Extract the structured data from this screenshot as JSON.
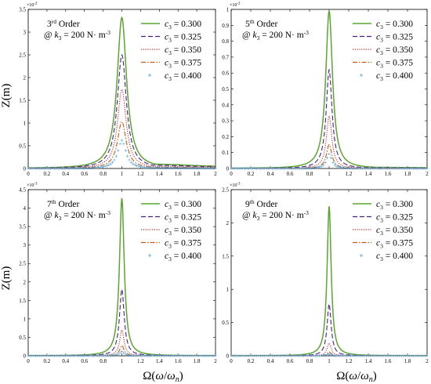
{
  "figure": {
    "ylabel": "Z(m)",
    "xlabel_parts": {
      "omega_cap": "Ω",
      "open": "(",
      "omega": "ω",
      "slash": "/",
      "omega2": "ω",
      "sub": "n",
      "close": ")"
    }
  },
  "legend": [
    {
      "label_var": "c",
      "label_sub": "3",
      "label_value": " = 0.300",
      "color": "#5aa630",
      "style": "solid"
    },
    {
      "label_var": "c",
      "label_sub": "3",
      "label_value": " = 0.325",
      "color": "#4b1e8a",
      "style": "dashed"
    },
    {
      "label_var": "c",
      "label_sub": "3",
      "label_value": " = 0.350",
      "color": "#c0302a",
      "style": "dotted"
    },
    {
      "label_var": "c",
      "label_sub": "3",
      "label_value": " = 0.375",
      "color": "#c85a14",
      "style": "dashdot"
    },
    {
      "label_var": "c",
      "label_sub": "3",
      "label_value": " = 0.400",
      "color": "#4fa3dc",
      "style": "plus"
    }
  ],
  "chart_data": [
    {
      "type": "line",
      "title_num": "3",
      "title_sup": "rd",
      "title_rest": " Order",
      "subtitle_pre": "@ ",
      "subtitle_var": "k",
      "subtitle_sub": "3",
      "subtitle_rest": " = 200 N· m",
      "subtitle_sup": "-3",
      "exponent_label": "×10",
      "exponent_power": "-2",
      "xlim": [
        0,
        2
      ],
      "ylim": [
        0,
        3.5
      ],
      "xticks": [
        "0",
        "0.2",
        "0.4",
        "0.6",
        "0.8",
        "1",
        "1.2",
        "1.4",
        "1.6",
        "1.8",
        "2"
      ],
      "yticks": [
        "0",
        "0.5",
        "1",
        "1.5",
        "2",
        "2.5",
        "3",
        "3.5"
      ],
      "peak_x": 1.0,
      "series": [
        {
          "peak": 3.32,
          "width": 0.11
        },
        {
          "peak": 2.5,
          "width": 0.105
        },
        {
          "peak": 1.74,
          "width": 0.1
        },
        {
          "peak": 1.03,
          "width": 0.1
        },
        {
          "peak": 0.62,
          "width": 0.095
        }
      ],
      "tail_right": 0.12
    },
    {
      "type": "line",
      "title_num": "5",
      "title_sup": "th",
      "title_rest": " Order",
      "subtitle_pre": "@ ",
      "subtitle_var": "k",
      "subtitle_sub": "3",
      "subtitle_rest": " = 200 N· m",
      "subtitle_sup": "-3",
      "exponent_label": "×10",
      "exponent_power": "-2",
      "xlim": [
        0,
        2
      ],
      "ylim": [
        0,
        1
      ],
      "xticks": [
        "0",
        "0.2",
        "0.4",
        "0.6",
        "0.8",
        "1",
        "1.2",
        "1.4",
        "1.6",
        "1.8",
        "2"
      ],
      "yticks": [
        "0",
        "0.1",
        "0.2",
        "0.3",
        "0.4",
        "0.5",
        "0.6",
        "0.7",
        "0.8",
        "0.9",
        "1"
      ],
      "peak_x": 1.0,
      "series": [
        {
          "peak": 0.99,
          "width": 0.075
        },
        {
          "peak": 0.62,
          "width": 0.065
        },
        {
          "peak": 0.33,
          "width": 0.06
        },
        {
          "peak": 0.15,
          "width": 0.06
        },
        {
          "peak": 0.09,
          "width": 0.06
        }
      ],
      "tail_right": 0.01
    },
    {
      "type": "line",
      "title_num": "7",
      "title_sup": "th",
      "title_rest": " Order",
      "subtitle_pre": "@ ",
      "subtitle_var": "k",
      "subtitle_sub": "3",
      "subtitle_rest": " = 200 N· m",
      "subtitle_sup": "-3",
      "exponent_label": "×10",
      "exponent_power": "-3",
      "xlim": [
        0,
        2
      ],
      "ylim": [
        0,
        4.5
      ],
      "xticks": [
        "0",
        "0.2",
        "0.4",
        "0.6",
        "0.8",
        "1",
        "1.2",
        "1.4",
        "1.6",
        "1.8",
        "2"
      ],
      "yticks": [
        "0",
        "0.5",
        "1",
        "1.5",
        "2",
        "2.5",
        "3",
        "3.5",
        "4",
        "4.5"
      ],
      "peak_x": 1.0,
      "series": [
        {
          "peak": 4.27,
          "width": 0.055
        },
        {
          "peak": 1.8,
          "width": 0.055
        },
        {
          "peak": 0.7,
          "width": 0.05
        },
        {
          "peak": 0.28,
          "width": 0.05
        },
        {
          "peak": 0.12,
          "width": 0.05
        }
      ],
      "tail_right": 0.0
    },
    {
      "type": "line",
      "title_num": "9",
      "title_sup": "th",
      "title_rest": " Order",
      "subtitle_pre": "@ ",
      "subtitle_var": "k",
      "subtitle_sub": "3",
      "subtitle_rest": " = 200 N· m",
      "subtitle_sup": "-3",
      "exponent_label": "×10",
      "exponent_power": "-3",
      "xlim": [
        0,
        2
      ],
      "ylim": [
        0,
        2.5
      ],
      "xticks": [
        "0",
        "0.2",
        "0.4",
        "0.6",
        "0.8",
        "1",
        "1.2",
        "1.4",
        "1.6",
        "1.8",
        "2"
      ],
      "yticks": [
        "0",
        "0.5",
        "1",
        "1.5",
        "2",
        "2.5"
      ],
      "peak_x": 1.0,
      "series": [
        {
          "peak": 2.25,
          "width": 0.045
        },
        {
          "peak": 0.78,
          "width": 0.045
        },
        {
          "peak": 0.19,
          "width": 0.045
        },
        {
          "peak": 0.06,
          "width": 0.045
        },
        {
          "peak": 0.03,
          "width": 0.045
        }
      ],
      "tail_right": 0.0
    }
  ]
}
